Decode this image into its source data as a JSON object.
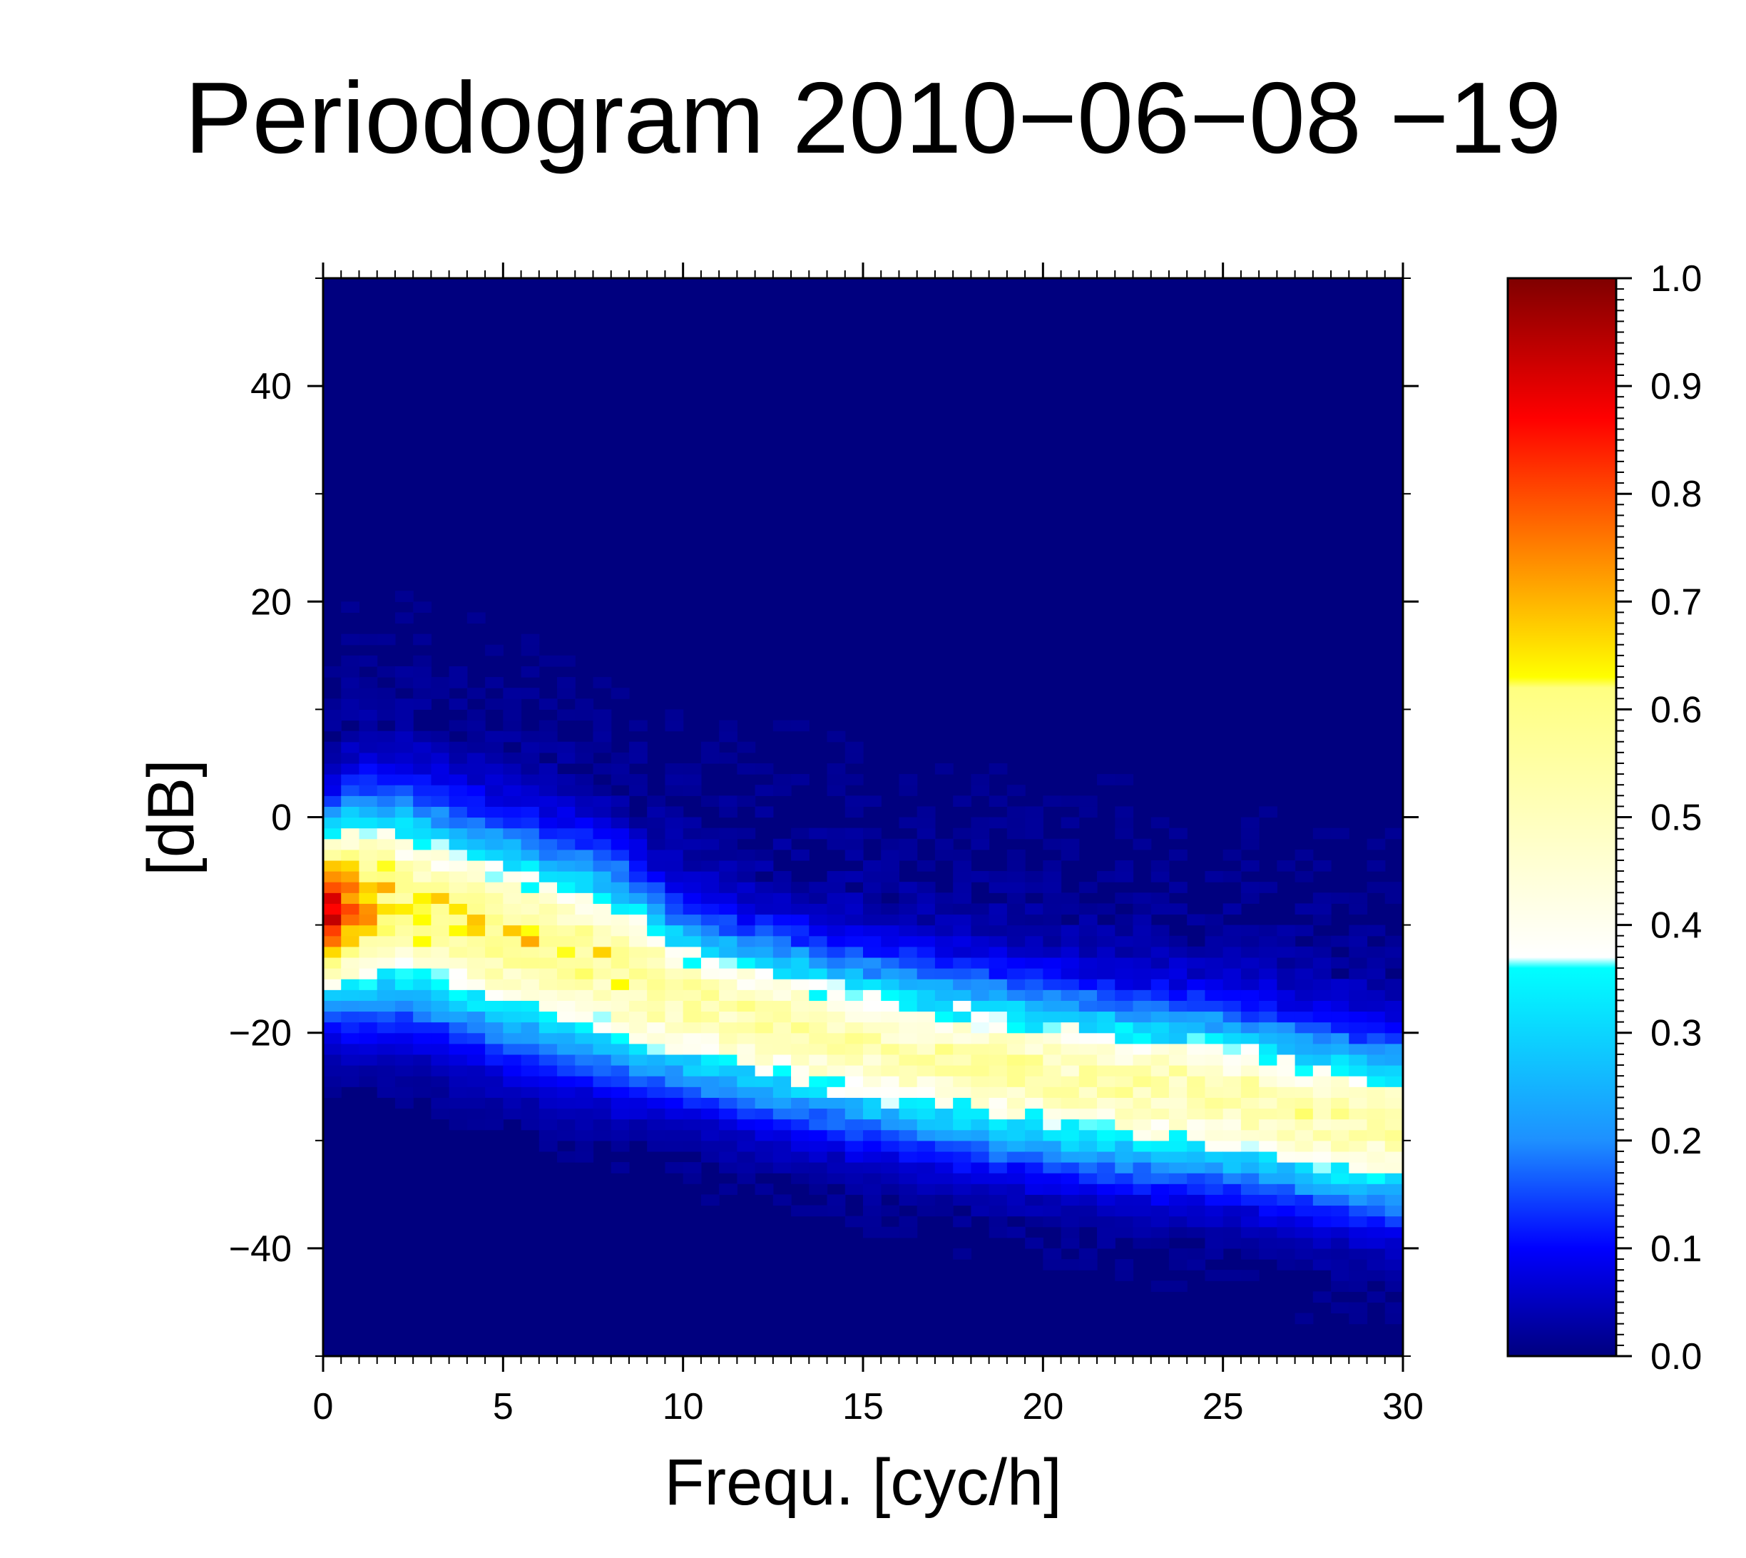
{
  "chart_data": {
    "type": "heatmap",
    "title": "Periodogram 2010−06−08 −19",
    "xlabel": "Frequ. [cyc/h]",
    "ylabel": "[dB]",
    "xlim": [
      0,
      30
    ],
    "ylim": [
      -50,
      50
    ],
    "x_ticks": [
      "0",
      "5",
      "10",
      "15",
      "20",
      "25",
      "30"
    ],
    "y_ticks": [
      "−40",
      "−20",
      "0",
      "20",
      "40"
    ],
    "colorbar": {
      "range": [
        0,
        1
      ],
      "ticks": [
        "0.0",
        "0.1",
        "0.2",
        "0.3",
        "0.4",
        "0.5",
        "0.6",
        "0.7",
        "0.8",
        "0.9",
        "1.0"
      ],
      "colors": [
        {
          "v": 0.0,
          "c": "#00007f"
        },
        {
          "v": 0.1,
          "c": "#0000ff"
        },
        {
          "v": 0.2,
          "c": "#1e90ff"
        },
        {
          "v": 0.36,
          "c": "#00ffff"
        },
        {
          "v": 0.37,
          "c": "#ffffff"
        },
        {
          "v": 0.62,
          "c": "#ffff80"
        },
        {
          "v": 0.63,
          "c": "#ffff00"
        },
        {
          "v": 0.75,
          "c": "#ff8000"
        },
        {
          "v": 0.87,
          "c": "#ff0000"
        },
        {
          "v": 1.0,
          "c": "#7f0000"
        }
      ]
    },
    "grid": false,
    "band": {
      "x": [
        0,
        1,
        2,
        3,
        5,
        7,
        8,
        10,
        12,
        15,
        18,
        20,
        22,
        25,
        28,
        30
      ],
      "center_db": [
        -9,
        -8,
        -8,
        -9,
        -11,
        -13,
        -14,
        -17,
        -19,
        -21,
        -23,
        -24,
        -25,
        -26,
        -28,
        -29
      ],
      "width_db": [
        5,
        6,
        6,
        6,
        6,
        6,
        6,
        5,
        5,
        5,
        5,
        5,
        5,
        5,
        5,
        5
      ],
      "peak_value": [
        0.9,
        0.7,
        0.6,
        0.58,
        0.58,
        0.56,
        0.55,
        0.52,
        0.5,
        0.5,
        0.5,
        0.5,
        0.5,
        0.5,
        0.5,
        0.5
      ]
    }
  }
}
